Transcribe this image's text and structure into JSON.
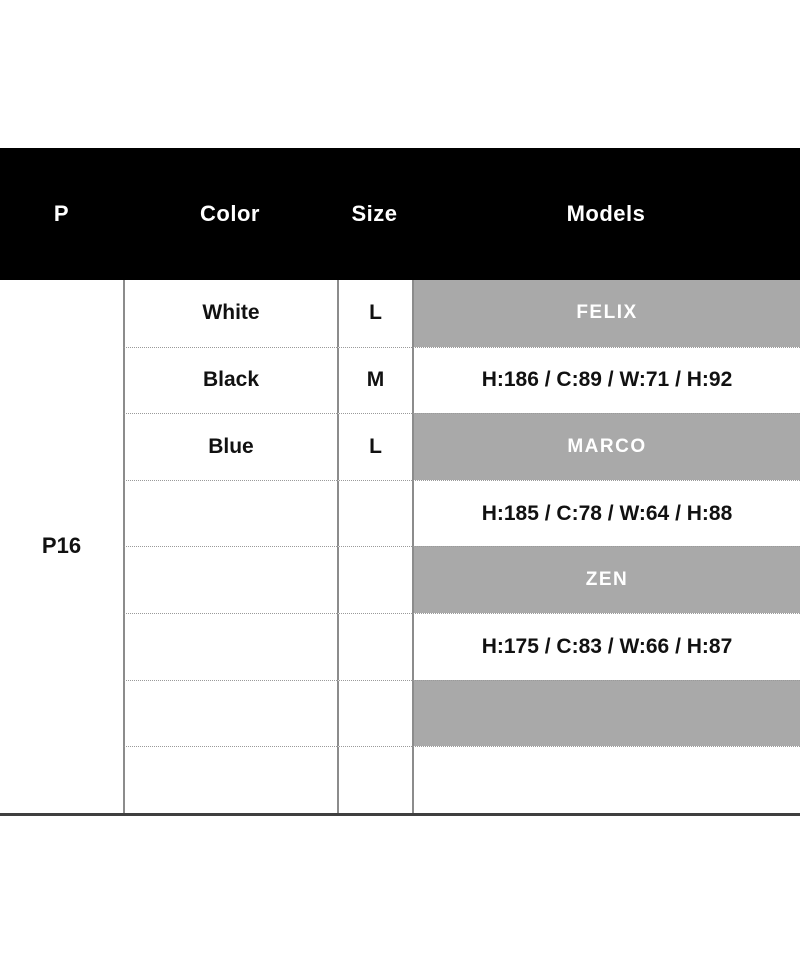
{
  "table": {
    "header": {
      "bg": "#000000",
      "text_color": "#ffffff",
      "columns": [
        {
          "label": "P"
        },
        {
          "label": "Color"
        },
        {
          "label": "Size"
        },
        {
          "label": "Models"
        }
      ]
    },
    "product_code": "P16",
    "rows": [
      {
        "color": "White",
        "size": "L",
        "model": "FELIX",
        "highlighted": true
      },
      {
        "color": "Black",
        "size": "M",
        "model": "H:186 / C:89 / W:71 / H:92",
        "highlighted": false
      },
      {
        "color": "Blue",
        "size": "L",
        "model": "MARCO",
        "highlighted": true
      },
      {
        "color": "",
        "size": "",
        "model": "H:185 / C:78 / W:64 / H:88",
        "highlighted": false
      },
      {
        "color": "",
        "size": "",
        "model": "ZEN",
        "highlighted": true
      },
      {
        "color": "",
        "size": "",
        "model": "H:175 / C:83 / W:66 / H:87",
        "highlighted": false
      },
      {
        "color": "",
        "size": "",
        "model": "",
        "highlighted": true
      },
      {
        "color": "",
        "size": "",
        "model": "",
        "highlighted": false
      }
    ],
    "colors": {
      "model_highlight_bg": "#a9a9a9",
      "model_highlight_text": "#ffffff",
      "body_text": "#111111",
      "grid_line": "#8c8c8c",
      "row_divider": "#9a9a9a",
      "bottom_border": "#3f3f3f"
    }
  }
}
